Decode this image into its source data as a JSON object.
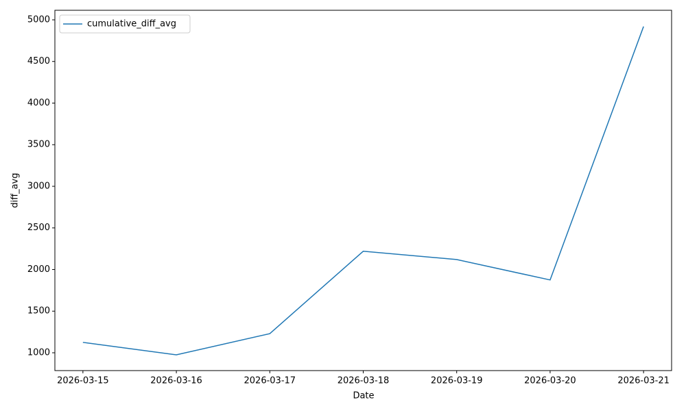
{
  "chart_data": {
    "type": "line",
    "x_label": "Date",
    "y_label": "diff_avg",
    "categories": [
      "2026-03-15",
      "2026-03-16",
      "2026-03-17",
      "2026-03-18",
      "2026-03-19",
      "2026-03-20",
      "2026-03-21"
    ],
    "series": [
      {
        "name": "cumulative_diff_avg",
        "color": "#1f77b4",
        "values": [
          1125,
          975,
          1230,
          2220,
          2120,
          1875,
          4920
        ]
      }
    ],
    "ylim": [
      786,
      5115
    ],
    "yticks": [
      1000,
      1500,
      2000,
      2500,
      3000,
      3500,
      4000,
      4500,
      5000
    ],
    "legend": "upper-left",
    "grid": false
  }
}
